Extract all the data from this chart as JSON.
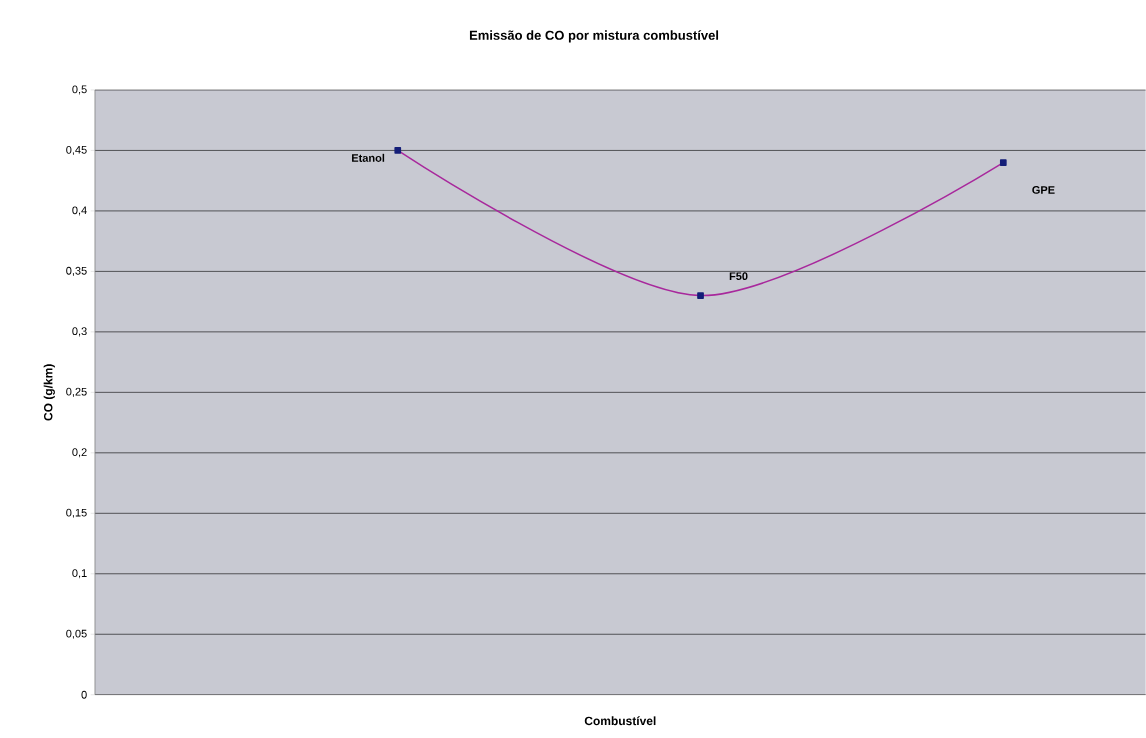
{
  "chart_data": {
    "type": "line",
    "title": "Emissão de CO por mistura combustível",
    "xlabel": "Combustível",
    "ylabel": "CO (g/km)",
    "categories": [
      "Etanol",
      "F50",
      "GPE"
    ],
    "series": [
      {
        "color": "#a8289c",
        "values": [
          0.45,
          0.33,
          0.44
        ]
      }
    ],
    "marker": "square",
    "line_style": "solid",
    "grid": "y",
    "ylim": [
      0,
      0.5
    ],
    "yticks": [
      {
        "value": 0,
        "label": "0"
      },
      {
        "value": 0.05,
        "label": "0,05"
      },
      {
        "value": 0.1,
        "label": "0,1"
      },
      {
        "value": 0.15,
        "label": "0,15"
      },
      {
        "value": 0.2,
        "label": "0,2"
      },
      {
        "value": 0.25,
        "label": "0,25"
      },
      {
        "value": 0.3,
        "label": "0,3"
      },
      {
        "value": 0.35,
        "label": "0,35"
      },
      {
        "value": 0.4,
        "label": "0,4"
      },
      {
        "value": 0.45,
        "label": "0,45"
      },
      {
        "value": 0.5,
        "label": "0,5"
      }
    ]
  }
}
